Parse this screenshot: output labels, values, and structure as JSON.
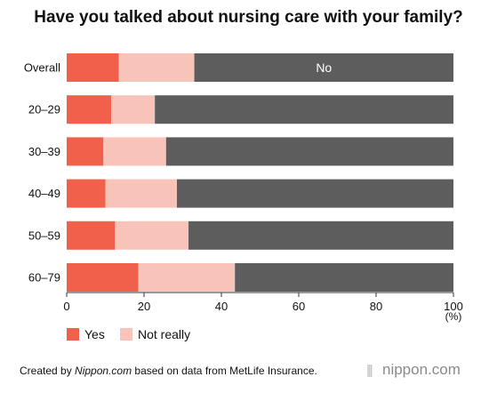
{
  "chart_data": {
    "type": "bar",
    "orientation": "horizontal",
    "stacked": true,
    "title": "Have you talked about nursing care with your family?",
    "categories": [
      "Overall",
      "20–29",
      "30–39",
      "40–49",
      "50–59",
      "60–79"
    ],
    "series": [
      {
        "name": "Yes",
        "color": "#f0604a",
        "values": [
          13.5,
          11.5,
          9.5,
          10,
          12.5,
          18.5
        ]
      },
      {
        "name": "Not really",
        "color": "#f8c4ba",
        "values": [
          19.5,
          11.3,
          16.2,
          18.5,
          19,
          25
        ]
      },
      {
        "name": "No",
        "color": "#5d5d5d",
        "values": [
          67,
          77.2,
          74.3,
          71.5,
          68.5,
          56.5
        ]
      }
    ],
    "inline_label": {
      "category": "Overall",
      "series": "No",
      "text": "No"
    },
    "xlim": [
      0,
      100
    ],
    "xticks": [
      0,
      20,
      40,
      60,
      80,
      100
    ],
    "x_unit": "(%)",
    "legend": {
      "placement": "bottom-left",
      "items": [
        "Yes",
        "Not really"
      ]
    }
  },
  "footer": {
    "prefix": "Created by ",
    "source_italic": "Nippon.com",
    "suffix": " based on data from MetLife Insurance."
  },
  "brand": {
    "mark": "|||",
    "name": "nippon.com"
  }
}
